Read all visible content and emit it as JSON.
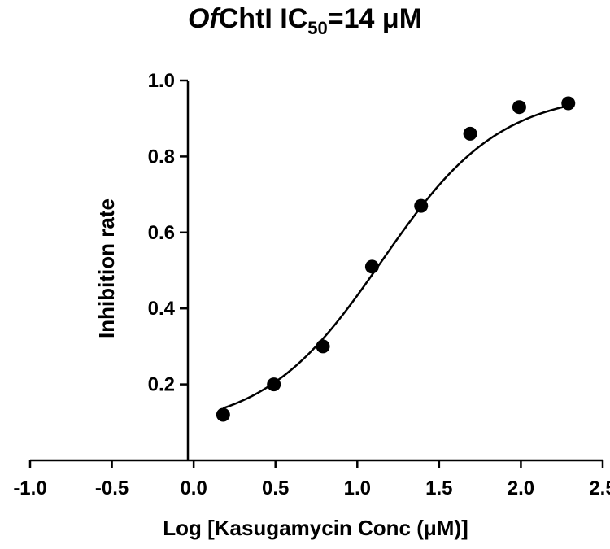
{
  "title": {
    "italic_part": "Of",
    "main_part": "ChtI IC",
    "subscript": "50",
    "suffix": "=14 μM"
  },
  "chart_data": {
    "type": "scatter",
    "title": "OfChtI IC50=14 μM",
    "xlabel": "Log [Kasugamycin Conc (μM)]",
    "ylabel": "Inhibition rate",
    "xlim": [
      -1.0,
      2.5
    ],
    "ylim": [
      0.0,
      1.0
    ],
    "x_ticks": [
      "-1.0",
      "-0.5",
      "0.0",
      "0.5",
      "1.0",
      "1.5",
      "2.0",
      "2.5"
    ],
    "y_ticks": [
      "0.2",
      "0.4",
      "0.6",
      "0.8",
      "1.0"
    ],
    "grid": false,
    "series": [
      {
        "points": [
          {
            "x": 0.18,
            "y": 0.12
          },
          {
            "x": 0.49,
            "y": 0.2
          },
          {
            "x": 0.79,
            "y": 0.3
          },
          {
            "x": 1.09,
            "y": 0.51
          },
          {
            "x": 1.39,
            "y": 0.67
          },
          {
            "x": 1.69,
            "y": 0.86
          },
          {
            "x": 1.99,
            "y": 0.93
          },
          {
            "x": 2.29,
            "y": 0.94
          }
        ]
      }
    ],
    "fit_curve": {
      "model": "sigmoidal dose-response",
      "bottom": 0.08,
      "top": 0.97,
      "log_ic50": 1.15,
      "hill_slope": 1.2,
      "x_range": [
        0.18,
        2.29
      ]
    },
    "colors": {
      "points": "#000000",
      "curve": "#000000",
      "axes": "#000000"
    }
  }
}
